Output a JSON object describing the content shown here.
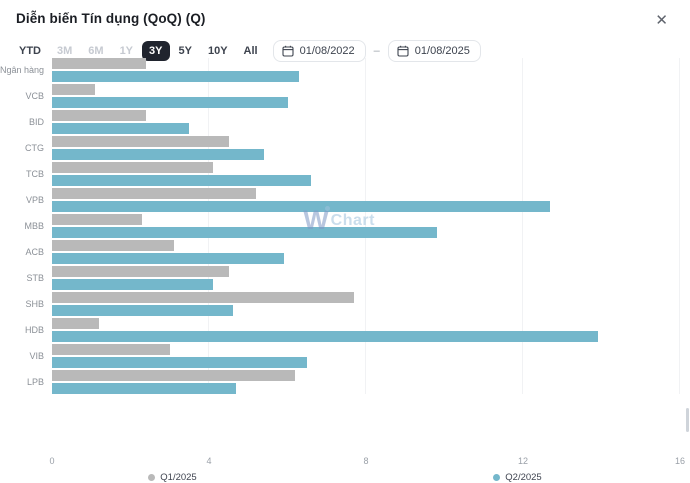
{
  "window": {
    "title": "Diễn biến Tín dụng (QoQ) (Q)",
    "close_label": "✕"
  },
  "toolbar": {
    "ranges": [
      {
        "label": "YTD",
        "state": "enabled"
      },
      {
        "label": "3M",
        "state": "disabled"
      },
      {
        "label": "6M",
        "state": "disabled"
      },
      {
        "label": "1Y",
        "state": "disabled"
      },
      {
        "label": "3Y",
        "state": "selected"
      },
      {
        "label": "5Y",
        "state": "enabled"
      },
      {
        "label": "10Y",
        "state": "enabled"
      },
      {
        "label": "All",
        "state": "enabled"
      }
    ],
    "date_range": {
      "from": "01/08/2022",
      "separator": "–",
      "to": "01/08/2025"
    }
  },
  "watermark": {
    "w_text": "W",
    "rest_text": "Chart"
  },
  "chart_data": {
    "type": "bar",
    "orientation": "horizontal",
    "title": "Diễn biến Tín dụng (QoQ) (Q)",
    "categories": [
      "Ngân hàng",
      "VCB",
      "BID",
      "CTG",
      "TCB",
      "VPB",
      "MBB",
      "ACB",
      "STB",
      "SHB",
      "HDB",
      "VIB",
      "LPB"
    ],
    "series": [
      {
        "name": "Q1/2025",
        "color": "#b9b9b9",
        "values": [
          2.4,
          1.1,
          2.4,
          4.5,
          4.1,
          5.2,
          2.3,
          3.1,
          4.5,
          7.7,
          1.2,
          3.0,
          6.2
        ]
      },
      {
        "name": "Q2/2025",
        "color": "#74b7cb",
        "values": [
          6.3,
          6.0,
          3.5,
          5.4,
          6.6,
          12.7,
          9.8,
          5.9,
          4.1,
          4.6,
          13.9,
          6.5,
          4.7
        ]
      }
    ],
    "xlim": [
      0,
      16
    ],
    "xticks": [
      0,
      4,
      8,
      12,
      16
    ],
    "grid": "vertical-only",
    "legend_position": "bottom"
  },
  "colors": {
    "q1_bar": "#b9b9b9",
    "q2_bar": "#74b7cb",
    "selected_button_bg": "#20242e",
    "gridline": "#f1f2f4"
  }
}
